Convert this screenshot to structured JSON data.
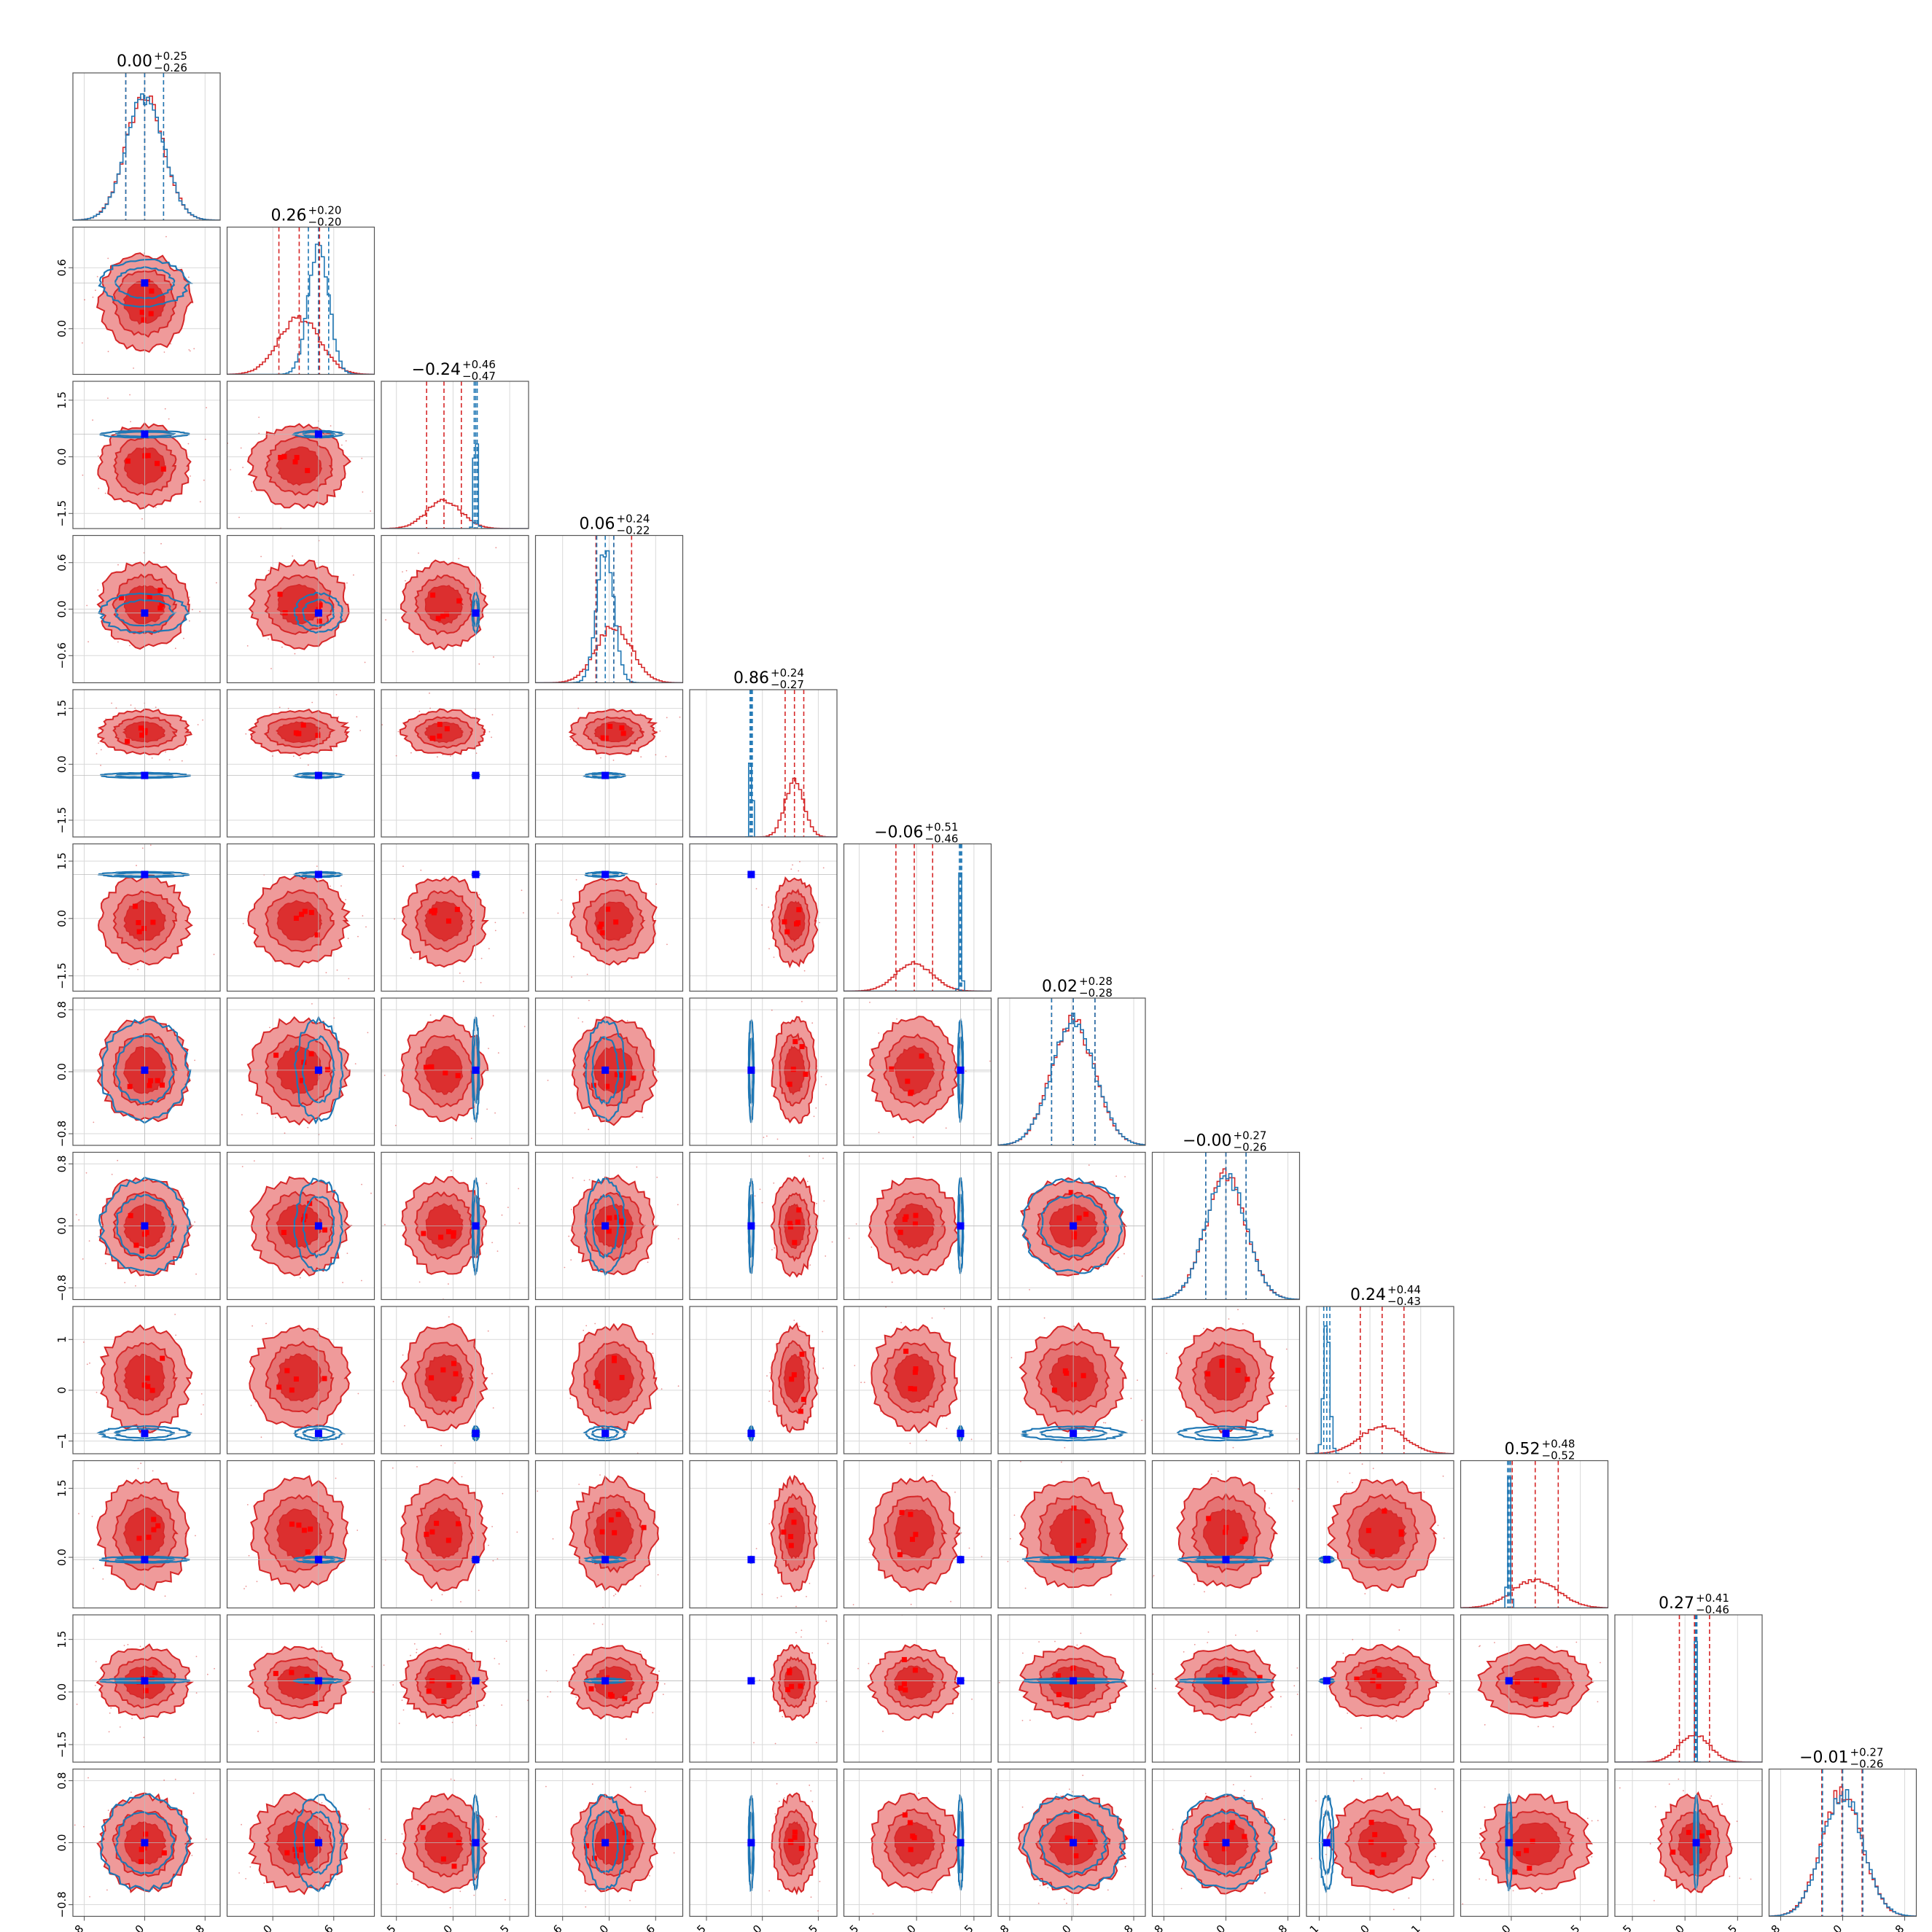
{
  "chart_data": {
    "type": "corner",
    "n_params": 12,
    "colors": {
      "red": "#d62728",
      "red_fill_outer": "#ef9a9a",
      "red_fill_inner": "#dc2f2f",
      "blue": "#1f77b4",
      "blue_marker": "#0000ff",
      "red_marker": "#ff0000",
      "grid": "#d9d9d9",
      "axes": "#555555"
    },
    "grid": true,
    "titles": [
      {
        "value": "0.00",
        "plus": "+0.25",
        "minus": "−0.26"
      },
      {
        "value": "0.26",
        "plus": "+0.20",
        "minus": "−0.20"
      },
      {
        "value": "−0.24",
        "plus": "+0.46",
        "minus": "−0.47"
      },
      {
        "value": "0.06",
        "plus": "+0.24",
        "minus": "−0.22"
      },
      {
        "value": "0.86",
        "plus": "+0.24",
        "minus": "−0.27"
      },
      {
        "value": "−0.06",
        "plus": "+0.51",
        "minus": "−0.46"
      },
      {
        "value": "0.02",
        "plus": "+0.28",
        "minus": "−0.28"
      },
      {
        "value": "−0.00",
        "plus": "+0.27",
        "minus": "−0.26"
      },
      {
        "value": "0.24",
        "plus": "+0.44",
        "minus": "−0.43"
      },
      {
        "value": "0.52",
        "plus": "+0.48",
        "minus": "−0.52"
      },
      {
        "value": "0.27",
        "plus": "+0.41",
        "minus": "−0.46"
      },
      {
        "value": "−0.01",
        "plus": "+0.27",
        "minus": "−0.26"
      }
    ],
    "ranges": [
      [
        -0.95,
        1.0
      ],
      [
        -0.45,
        1.0
      ],
      [
        -1.9,
        2.0
      ],
      [
        -0.95,
        0.95
      ],
      [
        -1.95,
        2.0
      ],
      [
        -1.9,
        1.95
      ],
      [
        -0.95,
        0.95
      ],
      [
        -0.95,
        0.95
      ],
      [
        -1.25,
        1.65
      ],
      [
        -1.1,
        2.1
      ],
      [
        -2.0,
        2.2
      ],
      [
        -0.95,
        0.95
      ]
    ],
    "ticks": [
      [
        "−0.8",
        "0.0",
        "0.8"
      ],
      [
        "0.0",
        "0.6"
      ],
      [
        "−1.5",
        "0.0",
        "1.5"
      ],
      [
        "−0.6",
        "0.0",
        "0.6"
      ],
      [
        "−1.5",
        "0.0",
        "1.5"
      ],
      [
        "−1.5",
        "0.0",
        "1.5"
      ],
      [
        "−0.8",
        "0.0",
        "0.8"
      ],
      [
        "−0.8",
        "0.0",
        "0.8"
      ],
      [
        "−1",
        "0",
        "1"
      ],
      [
        "0.0",
        "1.5"
      ],
      [
        "−1.5",
        "0.0",
        "1.5"
      ],
      [
        "−0.8",
        "0.0",
        "0.8"
      ]
    ],
    "tick_values": [
      [
        -0.8,
        0.0,
        0.8
      ],
      [
        0.0,
        0.6
      ],
      [
        -1.5,
        0.0,
        1.5
      ],
      [
        -0.6,
        0.0,
        0.6
      ],
      [
        -1.5,
        0.0,
        1.5
      ],
      [
        -1.5,
        0.0,
        1.5
      ],
      [
        -0.8,
        0.0,
        0.8
      ],
      [
        -0.8,
        0.0,
        0.8
      ],
      [
        -1.0,
        0.0,
        1.0
      ],
      [
        0.0,
        1.5
      ],
      [
        -1.5,
        0.0,
        1.5
      ],
      [
        -0.8,
        0.0,
        0.8
      ]
    ],
    "truth": [
      0.0,
      0.45,
      0.6,
      -0.05,
      -0.3,
      1.15,
      0.02,
      0.0,
      -0.85,
      -0.05,
      0.32,
      0.0
    ],
    "red_posterior": {
      "mean": [
        0.0,
        0.26,
        -0.24,
        0.06,
        0.86,
        -0.06,
        0.02,
        0.0,
        0.24,
        0.52,
        0.27,
        -0.01
      ],
      "sigma": [
        0.25,
        0.2,
        0.46,
        0.23,
        0.25,
        0.48,
        0.28,
        0.26,
        0.43,
        0.5,
        0.43,
        0.26
      ]
    },
    "blue_posterior": {
      "mean": [
        0.0,
        0.45,
        0.6,
        -0.05,
        -0.3,
        1.15,
        0.02,
        0.0,
        -0.85,
        -0.05,
        0.32,
        0.0
      ],
      "sigma": [
        0.25,
        0.1,
        0.04,
        0.11,
        0.03,
        0.03,
        0.28,
        0.26,
        0.06,
        0.03,
        0.02,
        0.26
      ]
    }
  }
}
